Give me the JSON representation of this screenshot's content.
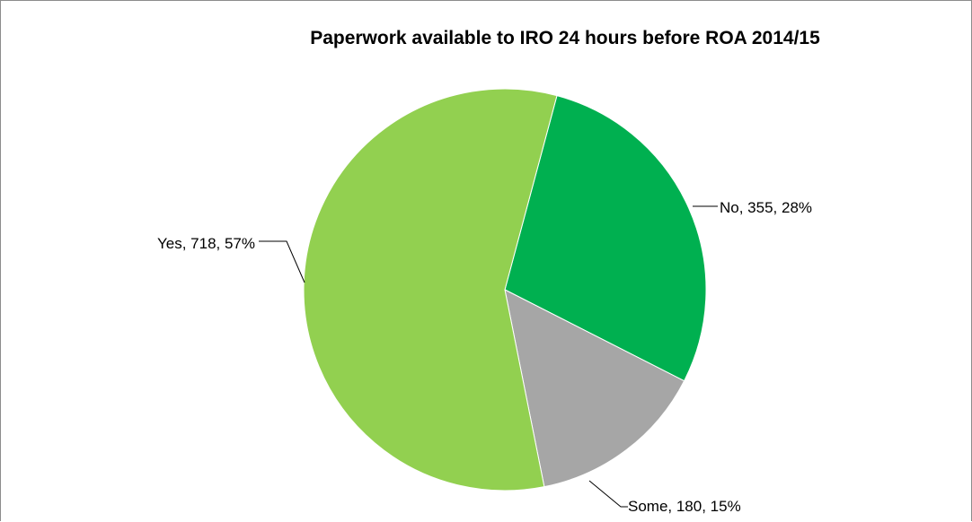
{
  "chart_data": {
    "type": "pie",
    "title": "Paperwork available to IRO 24 hours before ROA 2014/15",
    "slices": [
      {
        "label": "No",
        "value": 355,
        "percent": "28%",
        "color": "#00b050"
      },
      {
        "label": "Some",
        "value": 180,
        "percent": "15%",
        "color": "#a6a6a6"
      },
      {
        "label": "Yes",
        "value": 718,
        "percent": "57%",
        "color": "#92d050"
      }
    ],
    "data_labels": [
      "No, 355, 28%",
      "Some, 180, 15%",
      "Yes, 718, 57%"
    ],
    "legend": "none"
  }
}
